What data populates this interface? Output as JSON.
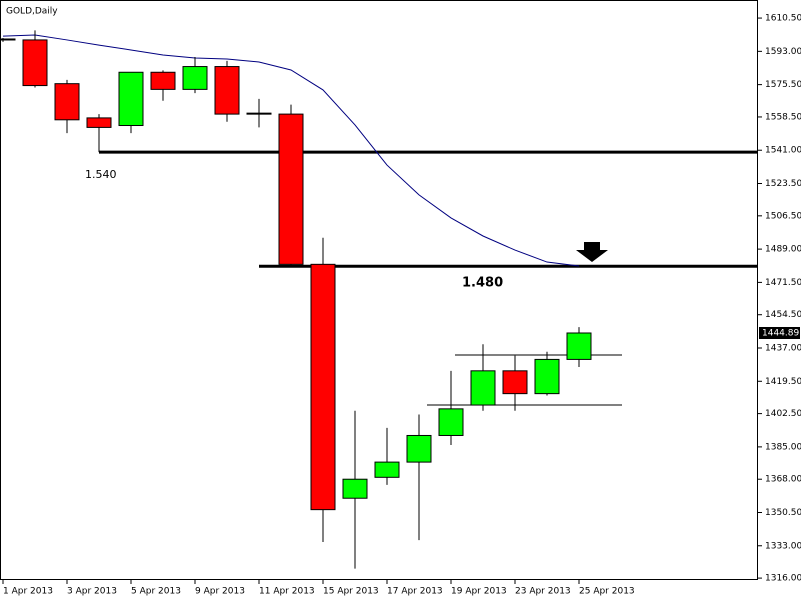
{
  "chart_data": {
    "type": "candlestick",
    "title": "GOLD,Daily",
    "categories": [
      "1 Apr 2013",
      null,
      "3 Apr 2013",
      null,
      "5 Apr 2013",
      null,
      "9 Apr 2013",
      null,
      "11 Apr 2013",
      null,
      "15 Apr 2013",
      null,
      "17 Apr 2013",
      null,
      "19 Apr 2013",
      null,
      "23 Apr 2013",
      null,
      "25 Apr 2013"
    ],
    "open": [
      1599,
      1599,
      1576,
      1558,
      1554,
      1582,
      1573,
      1585,
      1560,
      1560,
      1481,
      1358,
      1369,
      1377,
      1391,
      1407,
      1425,
      1413,
      1431
    ],
    "high": [
      1600,
      1604,
      1578,
      1560,
      1582,
      1583,
      1590,
      1588,
      1568,
      1565,
      1495,
      1404,
      1395,
      1402,
      1425,
      1439,
      1433,
      1435,
      1448
    ],
    "low": [
      1598,
      1574,
      1550,
      1540,
      1550,
      1567,
      1571,
      1556,
      1553,
      1480,
      1335,
      1321,
      1365,
      1336,
      1386,
      1404,
      1404,
      1412,
      1427
    ],
    "close": [
      1599.5,
      1575,
      1557,
      1553,
      1582,
      1573,
      1585,
      1560,
      1560.5,
      1481,
      1352,
      1368,
      1377,
      1391,
      1405,
      1425,
      1413,
      1431,
      1444.89
    ],
    "up_color": "#00ff00",
    "down_color": "#ff0000",
    "moving_average": {
      "color": "#000080",
      "values": [
        1601,
        1601.6,
        1599,
        1596.3,
        1593.7,
        1591.1,
        1589.5,
        1589,
        1587.4,
        1583.2,
        1572.7,
        1554.3,
        1533.2,
        1517.5,
        1505.4,
        1495.9,
        1488.5,
        1482.2,
        1480.1
      ]
    },
    "levels": [
      {
        "value": 1540,
        "label": "1.540"
      },
      {
        "value": 1480,
        "label": "1.480"
      }
    ],
    "channel_lines": [
      1433.3,
      1407
    ],
    "last_price": 1444.89,
    "ylim": [
      1315,
      1620
    ],
    "yticks": [
      {
        "value": 1610.5,
        "label": "1610.50"
      },
      {
        "value": 1593,
        "label": "1593.00"
      },
      {
        "value": 1575.5,
        "label": "1575.50"
      },
      {
        "value": 1558.5,
        "label": "1558.50"
      },
      {
        "value": 1541,
        "label": "1541.00"
      },
      {
        "value": 1523.5,
        "label": "1523.50"
      },
      {
        "value": 1506.5,
        "label": "1506.50"
      },
      {
        "value": 1489,
        "label": "1489.00"
      },
      {
        "value": 1471.5,
        "label": "1471.50"
      },
      {
        "value": 1454.5,
        "label": "1454.50"
      },
      {
        "value": 1437,
        "label": "1437.00"
      },
      {
        "value": 1419.5,
        "label": "1419.50"
      },
      {
        "value": 1402.5,
        "label": "1402.50"
      },
      {
        "value": 1385,
        "label": "1385.00"
      },
      {
        "value": 1368,
        "label": "1368.00"
      },
      {
        "value": 1350.5,
        "label": "1350.50"
      },
      {
        "value": 1333,
        "label": "1333.00"
      },
      {
        "value": 1316,
        "label": "1316.00"
      }
    ]
  }
}
